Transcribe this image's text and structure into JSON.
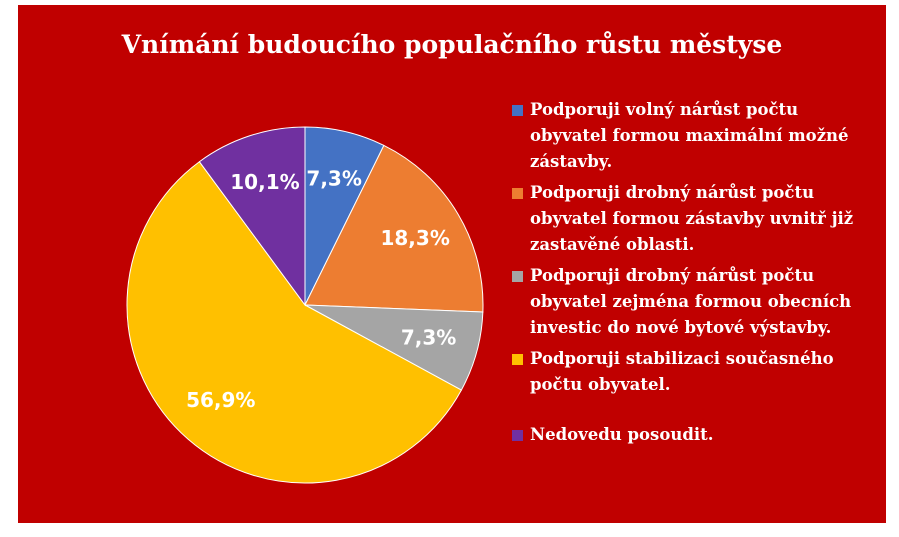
{
  "chart_data": {
    "type": "pie",
    "title": "Vnímání budoucího populačního růstu městyse",
    "categories": [
      "Podporuji volný nárůst počtu obyvatel formou maximální možné zástavby.",
      "Podporuji drobný nárůst počtu obyvatel formou zástavby uvnitř již zastavěné oblasti.",
      "Podporuji drobný nárůst počtu obyvatel zejména formou obecních investic do nové bytové výstavby.",
      "Podporuji stabilizaci současného počtu obyvatel.",
      "Nedovedu posoudit."
    ],
    "values": [
      7.3,
      18.3,
      7.3,
      56.9,
      10.1
    ],
    "value_labels": [
      "7,3%",
      "18,3%",
      "7,3%",
      "56,9%",
      "10,1%"
    ],
    "colors": [
      "#4472c4",
      "#ed7d31",
      "#a5a5a5",
      "#ffc000",
      "#7030a0"
    ],
    "legend": "right"
  }
}
